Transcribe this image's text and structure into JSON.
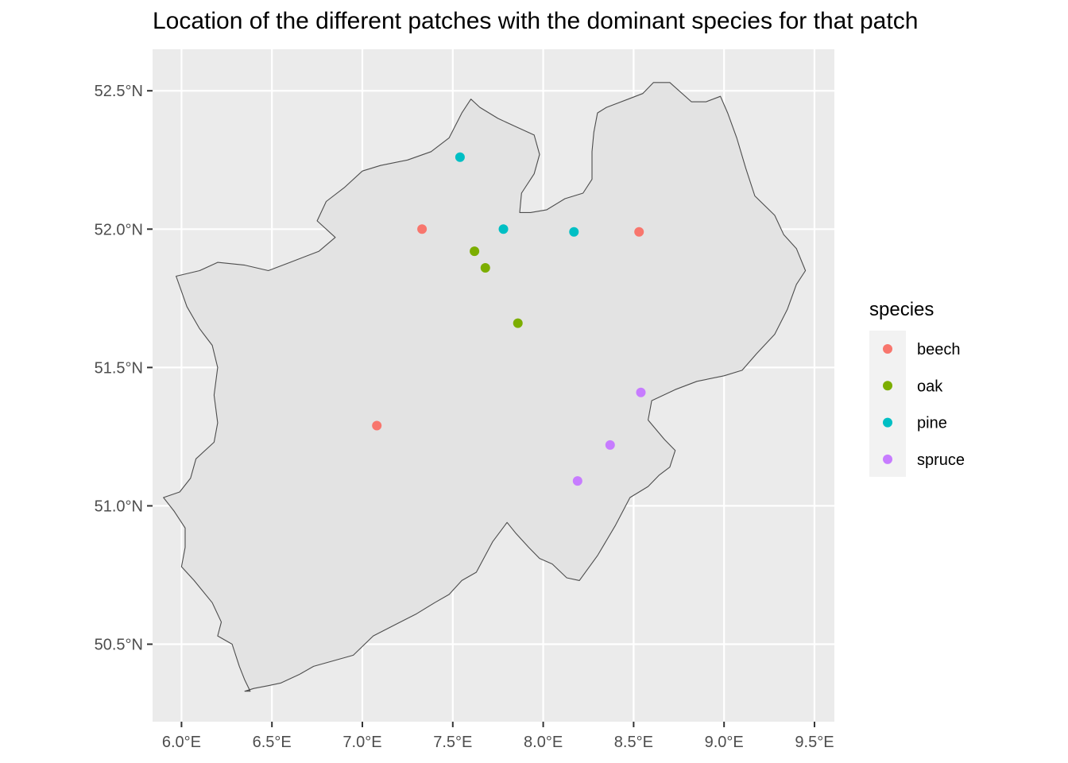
{
  "chart_data": {
    "type": "scatter",
    "title": "Location of the different patches with the dominant species for that patch",
    "xlabel": "",
    "ylabel": "",
    "xlim": [
      5.84,
      9.61
    ],
    "ylim": [
      50.22,
      52.65
    ],
    "x_ticks": [
      6.0,
      6.5,
      7.0,
      7.5,
      8.0,
      8.5,
      9.0,
      9.5
    ],
    "x_tick_labels": [
      "6.0°E",
      "6.5°E",
      "7.0°E",
      "7.5°E",
      "8.0°E",
      "8.5°E",
      "9.0°E",
      "9.5°E"
    ],
    "y_ticks": [
      50.5,
      51.0,
      51.5,
      52.0,
      52.5
    ],
    "y_tick_labels": [
      "50.5°N",
      "51.0°N",
      "51.5°N",
      "52.0°N",
      "52.5°N"
    ],
    "grid": true,
    "legend": {
      "title": "species",
      "placement": "right",
      "entries": [
        {
          "name": "beech",
          "color": "#F8766D"
        },
        {
          "name": "oak",
          "color": "#7CAE00"
        },
        {
          "name": "pine",
          "color": "#00BFC4"
        },
        {
          "name": "spruce",
          "color": "#C77CFF"
        }
      ]
    },
    "series": [
      {
        "name": "beech",
        "color": "#F8766D",
        "points": [
          [
            7.33,
            52.0
          ],
          [
            8.53,
            51.99
          ],
          [
            7.08,
            51.29
          ]
        ]
      },
      {
        "name": "oak",
        "color": "#7CAE00",
        "points": [
          [
            7.62,
            51.92
          ],
          [
            7.68,
            51.86
          ],
          [
            7.86,
            51.66
          ]
        ]
      },
      {
        "name": "pine",
        "color": "#00BFC4",
        "points": [
          [
            7.54,
            52.26
          ],
          [
            7.78,
            52.0
          ],
          [
            8.17,
            51.99
          ]
        ]
      },
      {
        "name": "spruce",
        "color": "#C77CFF",
        "points": [
          [
            8.54,
            51.41
          ],
          [
            8.37,
            51.22
          ],
          [
            8.19,
            51.09
          ]
        ]
      }
    ],
    "region_outline": [
      [
        6.35,
        50.33
      ],
      [
        6.4,
        50.34
      ],
      [
        6.48,
        50.35
      ],
      [
        6.55,
        50.36
      ],
      [
        6.65,
        50.39
      ],
      [
        6.73,
        50.42
      ],
      [
        6.84,
        50.44
      ],
      [
        6.95,
        50.46
      ],
      [
        7.06,
        50.53
      ],
      [
        7.18,
        50.57
      ],
      [
        7.3,
        50.61
      ],
      [
        7.4,
        50.65
      ],
      [
        7.48,
        50.68
      ],
      [
        7.55,
        50.73
      ],
      [
        7.63,
        50.76
      ],
      [
        7.72,
        50.87
      ],
      [
        7.8,
        50.94
      ],
      [
        7.85,
        50.9
      ],
      [
        7.92,
        50.85
      ],
      [
        7.98,
        50.81
      ],
      [
        8.05,
        50.79
      ],
      [
        8.13,
        50.74
      ],
      [
        8.2,
        50.73
      ],
      [
        8.3,
        50.82
      ],
      [
        8.4,
        50.93
      ],
      [
        8.48,
        51.03
      ],
      [
        8.58,
        51.07
      ],
      [
        8.64,
        51.11
      ],
      [
        8.7,
        51.14
      ],
      [
        8.73,
        51.2
      ],
      [
        8.67,
        51.24
      ],
      [
        8.58,
        51.31
      ],
      [
        8.6,
        51.38
      ],
      [
        8.73,
        51.42
      ],
      [
        8.85,
        51.45
      ],
      [
        9.0,
        51.47
      ],
      [
        9.1,
        51.49
      ],
      [
        9.18,
        51.55
      ],
      [
        9.28,
        51.62
      ],
      [
        9.35,
        51.71
      ],
      [
        9.4,
        51.8
      ],
      [
        9.45,
        51.85
      ],
      [
        9.4,
        51.93
      ],
      [
        9.33,
        51.98
      ],
      [
        9.28,
        52.05
      ],
      [
        9.17,
        52.12
      ],
      [
        9.12,
        52.22
      ],
      [
        9.07,
        52.33
      ],
      [
        9.02,
        52.42
      ],
      [
        8.98,
        52.48
      ],
      [
        8.9,
        52.46
      ],
      [
        8.82,
        52.46
      ],
      [
        8.7,
        52.53
      ],
      [
        8.61,
        52.53
      ],
      [
        8.55,
        52.49
      ],
      [
        8.47,
        52.47
      ],
      [
        8.35,
        52.44
      ],
      [
        8.3,
        52.42
      ],
      [
        8.28,
        52.35
      ],
      [
        8.27,
        52.28
      ],
      [
        8.27,
        52.18
      ],
      [
        8.22,
        52.13
      ],
      [
        8.12,
        52.11
      ],
      [
        8.02,
        52.07
      ],
      [
        7.93,
        52.06
      ],
      [
        7.87,
        52.06
      ],
      [
        7.88,
        52.13
      ],
      [
        7.95,
        52.2
      ],
      [
        7.98,
        52.27
      ],
      [
        7.95,
        52.34
      ],
      [
        7.85,
        52.37
      ],
      [
        7.75,
        52.4
      ],
      [
        7.65,
        52.44
      ],
      [
        7.6,
        52.47
      ],
      [
        7.55,
        52.42
      ],
      [
        7.48,
        52.33
      ],
      [
        7.38,
        52.28
      ],
      [
        7.25,
        52.25
      ],
      [
        7.1,
        52.23
      ],
      [
        7.0,
        52.21
      ],
      [
        6.9,
        52.15
      ],
      [
        6.8,
        52.1
      ],
      [
        6.75,
        52.03
      ],
      [
        6.85,
        51.97
      ],
      [
        6.76,
        51.92
      ],
      [
        6.6,
        51.88
      ],
      [
        6.48,
        51.85
      ],
      [
        6.35,
        51.87
      ],
      [
        6.2,
        51.88
      ],
      [
        6.1,
        51.85
      ],
      [
        5.97,
        51.83
      ],
      [
        6.03,
        51.72
      ],
      [
        6.1,
        51.64
      ],
      [
        6.17,
        51.58
      ],
      [
        6.2,
        51.5
      ],
      [
        6.18,
        51.4
      ],
      [
        6.2,
        51.3
      ],
      [
        6.18,
        51.23
      ],
      [
        6.08,
        51.17
      ],
      [
        6.05,
        51.1
      ],
      [
        5.99,
        51.05
      ],
      [
        5.9,
        51.03
      ],
      [
        5.96,
        50.98
      ],
      [
        6.02,
        50.92
      ],
      [
        6.02,
        50.85
      ],
      [
        6.0,
        50.78
      ],
      [
        6.07,
        50.73
      ],
      [
        6.17,
        50.65
      ],
      [
        6.22,
        50.58
      ],
      [
        6.2,
        50.53
      ],
      [
        6.28,
        50.5
      ],
      [
        6.32,
        50.42
      ],
      [
        6.35,
        50.37
      ],
      [
        6.38,
        50.33
      ]
    ]
  }
}
